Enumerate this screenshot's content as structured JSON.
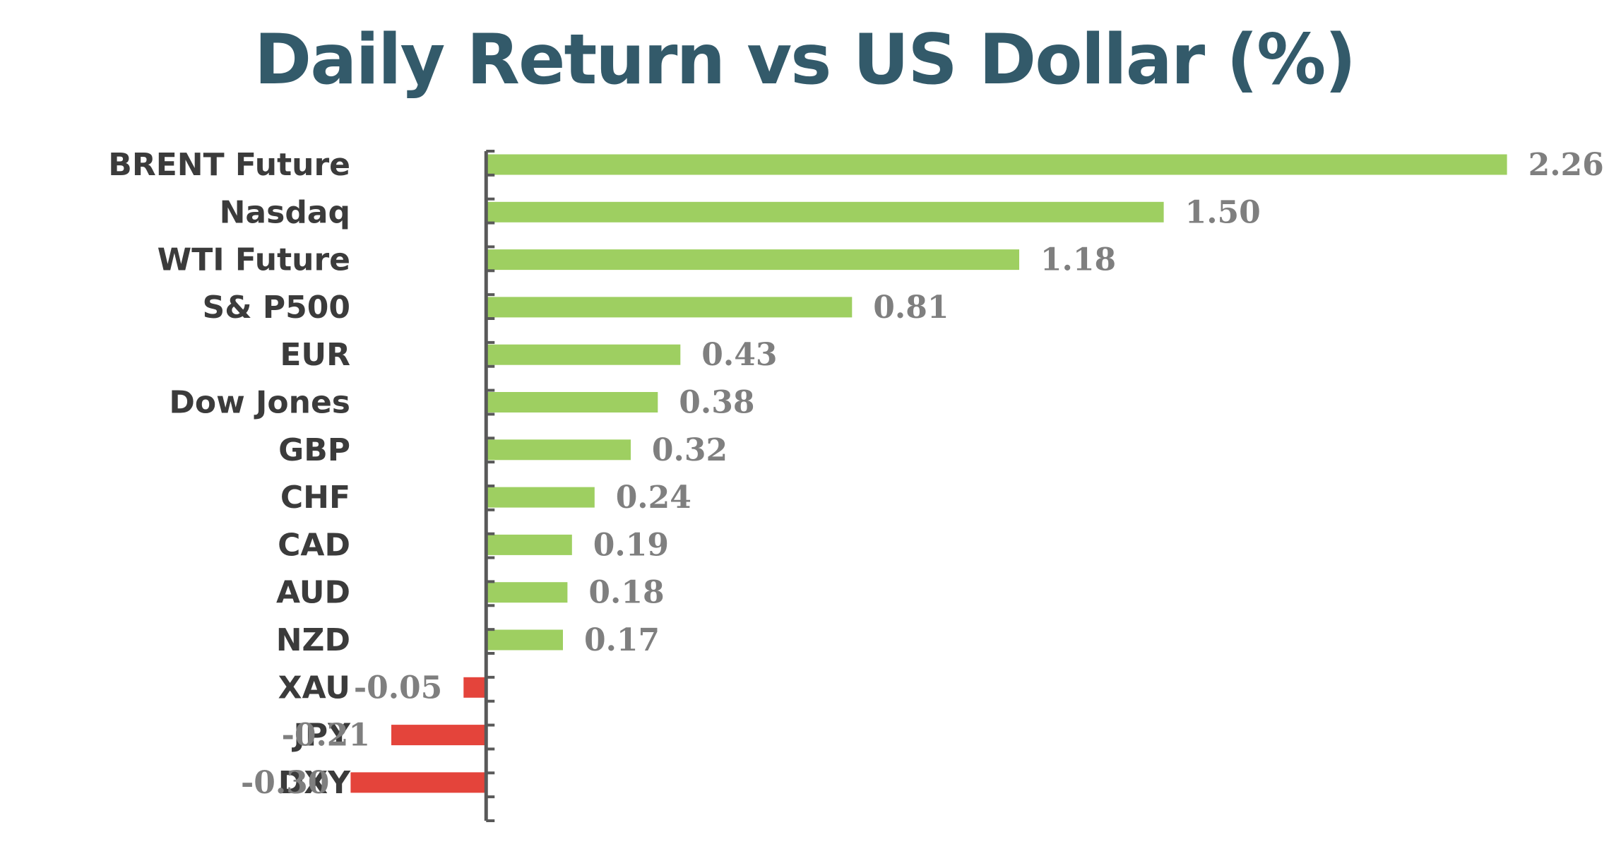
{
  "chart_data": {
    "type": "bar",
    "orientation": "horizontal",
    "title": "Daily Return vs US Dollar (%)",
    "xlabel": "",
    "ylabel": "",
    "categories": [
      "BRENT Future",
      "Nasdaq",
      "WTI Future",
      "S& P500",
      "EUR",
      "Dow Jones",
      "GBP",
      "CHF",
      "CAD",
      "AUD",
      "NZD",
      "XAU",
      "JPY",
      "DXY"
    ],
    "values": [
      2.26,
      1.5,
      1.18,
      0.81,
      0.43,
      0.38,
      0.32,
      0.24,
      0.19,
      0.18,
      0.17,
      -0.05,
      -0.21,
      -0.3
    ],
    "value_labels": [
      "2.26",
      "1.50",
      "1.18",
      "0.81",
      "0.43",
      "0.38",
      "0.32",
      "0.24",
      "0.19",
      "0.18",
      "0.17",
      "-0.05",
      "-0.21",
      "-0.30"
    ],
    "xlim": [
      -0.31,
      2.27
    ],
    "grid": false,
    "legend": "none",
    "colors": {
      "positive": "#9ecf61",
      "negative": "#e4443b",
      "axis": "#595959",
      "title": "#335a6a",
      "category_text": "#3b3b3b",
      "value_text": "#7f7f7f"
    }
  }
}
